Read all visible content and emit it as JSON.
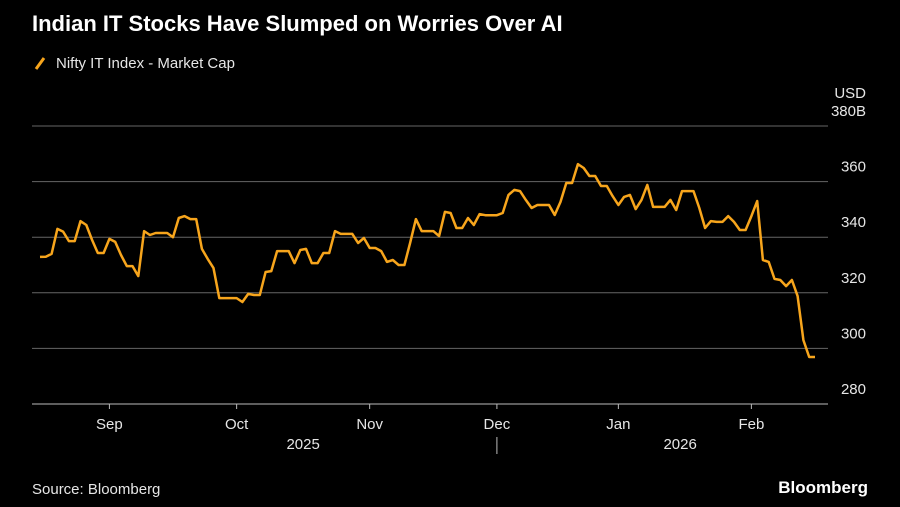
{
  "chart_data": {
    "type": "line",
    "title": "Indian IT Stocks Have Slumped on Worries Over AI",
    "y_unit": "USD",
    "source": "Source: Bloomberg",
    "brand": "Bloomberg",
    "categories": [
      null,
      null,
      null,
      null,
      null,
      null,
      null,
      null,
      null,
      null,
      null,
      null,
      "Sep",
      null,
      null,
      null,
      null,
      null,
      null,
      null,
      null,
      null,
      null,
      null,
      null,
      null,
      null,
      null,
      null,
      null,
      null,
      null,
      null,
      null,
      "Oct",
      null,
      null,
      null,
      null,
      null,
      null,
      null,
      null,
      null,
      null,
      null,
      null,
      null,
      null,
      null,
      null,
      null,
      null,
      null,
      null,
      null,
      null,
      "Nov",
      null,
      null,
      null,
      null,
      null,
      null,
      null,
      null,
      null,
      null,
      null,
      null,
      null,
      null,
      null,
      null,
      null,
      null,
      null,
      null,
      null,
      "Dec",
      null,
      null,
      null,
      null,
      null,
      null,
      null,
      null,
      null,
      null,
      null,
      null,
      null,
      null,
      null,
      null,
      null,
      null,
      null,
      null,
      "Jan",
      null,
      null,
      null,
      null,
      null,
      null,
      null,
      null,
      null,
      null,
      null,
      null,
      null,
      null,
      null,
      null,
      null,
      null,
      null,
      null,
      null,
      null,
      "Feb",
      null,
      null,
      null,
      null,
      null,
      null,
      null,
      null,
      null,
      null,
      null
    ],
    "year_labels": [
      "2025",
      "2026"
    ],
    "series": [
      {
        "name": "Nifty IT Index - Market Cap",
        "color": "#f7a51c",
        "values": [
          332.9,
          333,
          334,
          343,
          342,
          338.6,
          338.6,
          345.8,
          344.4,
          339,
          334.3,
          334.3,
          339.4,
          338.3,
          333.6,
          329.6,
          329.6,
          326,
          342.2,
          340.8,
          341.5,
          341.5,
          341.5,
          340,
          346.9,
          347.6,
          346.5,
          346.5,
          335.8,
          332.2,
          328.9,
          318.1,
          318.1,
          318.1,
          318.1,
          316.7,
          319.6,
          319.2,
          319.2,
          327.5,
          327.8,
          335,
          335,
          335,
          330.7,
          335.4,
          335.8,
          330.7,
          330.7,
          334.3,
          334.3,
          342.2,
          341.2,
          341.2,
          341.2,
          337.9,
          339.7,
          336.1,
          336.1,
          335,
          331.1,
          331.8,
          330,
          330,
          337.9,
          346.5,
          342.2,
          342.2,
          342.2,
          340.4,
          349.1,
          348.7,
          343.3,
          343.3,
          346.9,
          344.4,
          348.3,
          347.9,
          347.9,
          347.9,
          348.7,
          355.2,
          357,
          356.6,
          353.4,
          350.5,
          351.6,
          351.6,
          351.6,
          348,
          352.7,
          359.5,
          359.5,
          366.3,
          364.9,
          362,
          362,
          358.4,
          358.4,
          354.8,
          351.6,
          354.5,
          355.2,
          350.1,
          353.4,
          358.8,
          350.9,
          350.9,
          350.9,
          353.4,
          349.8,
          356.6,
          356.6,
          356.6,
          350.5,
          343.3,
          345.8,
          345.5,
          345.5,
          347.6,
          345.5,
          342.6,
          342.6,
          347.6,
          353,
          331.8,
          331.1,
          325,
          324.6,
          322.4,
          324.6,
          318.8,
          303,
          296.9,
          296.9
        ]
      }
    ],
    "ylim": [
      280,
      380
    ],
    "yticks": [
      280,
      300,
      320,
      340,
      360,
      {
        "value": 380,
        "label": "380B"
      }
    ],
    "grid": true
  }
}
